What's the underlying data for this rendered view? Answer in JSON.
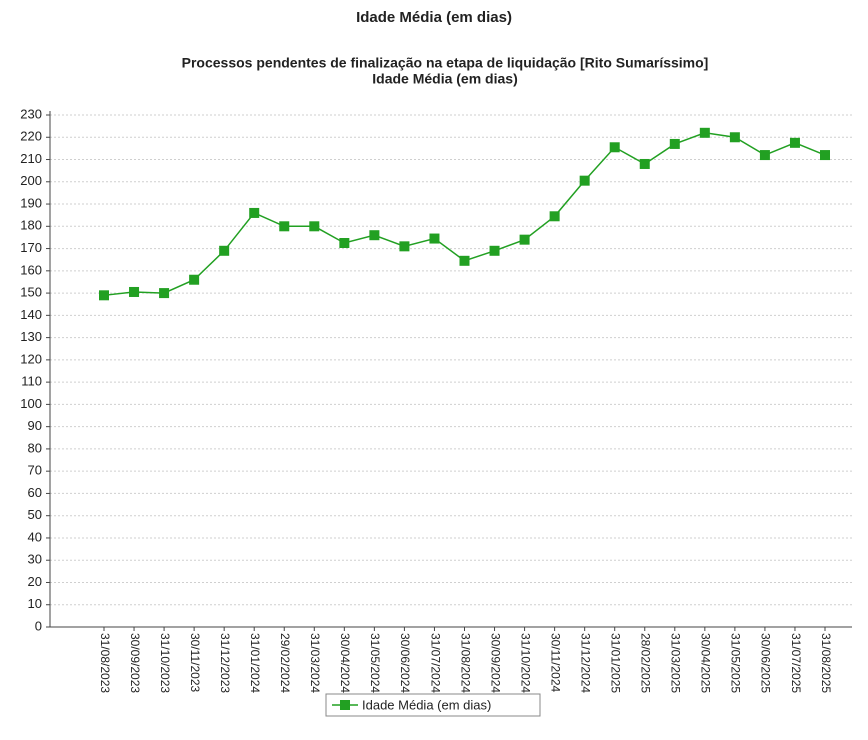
{
  "heading": "Idade Média (em dias)",
  "chart_data": {
    "type": "line",
    "title": "Processos pendentes de finalização na etapa de liquidação [Rito Sumaríssimo]",
    "subtitle": "Idade Média (em dias)",
    "categories": [
      "31/08/2023",
      "30/09/2023",
      "31/10/2023",
      "30/11/2023",
      "31/12/2023",
      "31/01/2024",
      "29/02/2024",
      "31/03/2024",
      "30/04/2024",
      "31/05/2024",
      "30/06/2024",
      "31/07/2024",
      "31/08/2024",
      "30/09/2024",
      "31/10/2024",
      "30/11/2024",
      "31/12/2024",
      "31/01/2025",
      "28/02/2025",
      "31/03/2025",
      "30/04/2025",
      "31/05/2025",
      "30/06/2025",
      "31/07/2025",
      "31/08/2025"
    ],
    "series": [
      {
        "name": "Idade Média (em dias)",
        "color": "#22a022",
        "values": [
          149,
          150.5,
          150,
          156,
          169,
          186,
          180,
          180,
          172.5,
          176,
          171,
          174.5,
          164.5,
          169,
          174,
          184.5,
          200.5,
          215.5,
          208,
          217,
          222,
          220,
          212,
          217.5,
          212
        ]
      }
    ],
    "ylim": [
      0,
      230
    ],
    "yticks": [
      0,
      10,
      20,
      30,
      40,
      50,
      60,
      70,
      80,
      90,
      100,
      110,
      120,
      130,
      140,
      150,
      160,
      170,
      180,
      190,
      200,
      210,
      220,
      230
    ],
    "grid": true
  }
}
